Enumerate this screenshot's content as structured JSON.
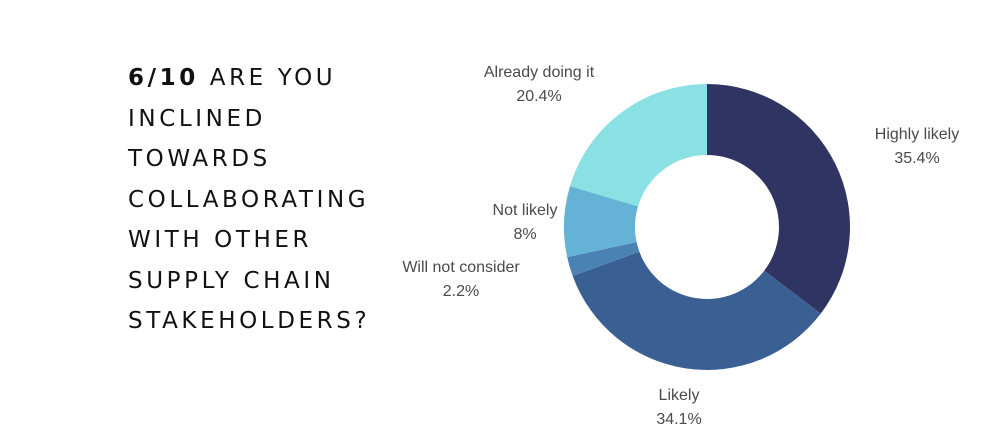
{
  "question": {
    "number": "6/10",
    "lines": [
      "ARE YOU",
      "INCLINED",
      "TOWARDS",
      "COLLABORATING",
      "WITH OTHER",
      "SUPPLY CHAIN",
      "STAKEHOLDERS?"
    ]
  },
  "chart_data": {
    "type": "pie",
    "donut": true,
    "title": "",
    "legend": "none",
    "slices": [
      {
        "label": "Highly likely",
        "value": 35.4,
        "value_label": "35.4%",
        "color": "#303463"
      },
      {
        "label": "Likely",
        "value": 34.1,
        "value_label": "34.1%",
        "color": "#3a5f92"
      },
      {
        "label": "Will not consider",
        "value": 2.2,
        "value_label": "2.2%",
        "color": "#4a82b4"
      },
      {
        "label": "Not likely",
        "value": 8,
        "value_label": "8%",
        "color": "#64b3d6"
      },
      {
        "label": "Already doing it",
        "value": 20.4,
        "value_label": "20.4%",
        "color": "#8ae1e4"
      }
    ]
  }
}
